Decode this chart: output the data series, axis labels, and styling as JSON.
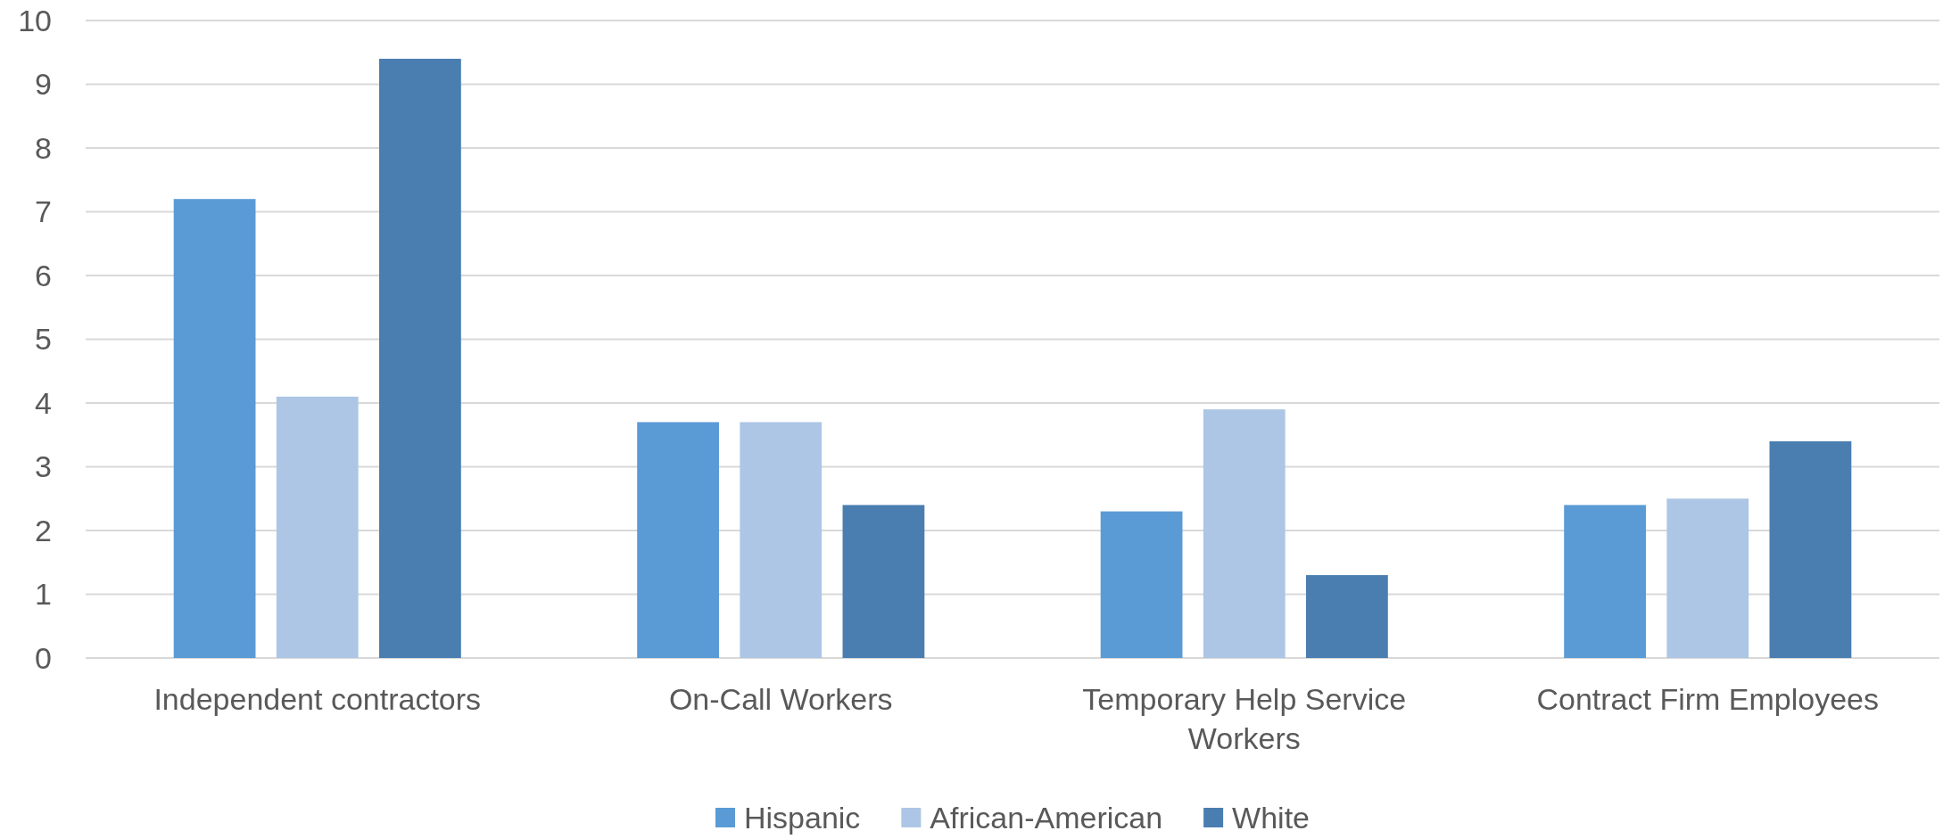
{
  "chart_data": {
    "type": "bar",
    "categories": [
      "Independent contractors",
      "On-Call Workers",
      "Temporary Help Service Workers",
      "Contract Firm Employees"
    ],
    "series": [
      {
        "name": "Hispanic",
        "color": "#5b9bd5",
        "values": [
          7.2,
          3.7,
          2.3,
          2.4
        ]
      },
      {
        "name": "African-American",
        "color": "#adc6e5",
        "values": [
          4.1,
          3.7,
          3.9,
          2.5
        ]
      },
      {
        "name": "White",
        "color": "#4a7eb0",
        "values": [
          9.4,
          2.4,
          1.3,
          3.4
        ]
      }
    ],
    "ylim": [
      0,
      10
    ],
    "yticks": [
      0,
      1,
      2,
      3,
      4,
      5,
      6,
      7,
      8,
      9,
      10
    ],
    "grid": "y",
    "legend": "bottom"
  }
}
